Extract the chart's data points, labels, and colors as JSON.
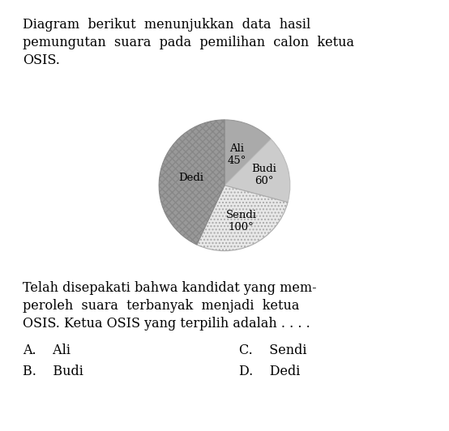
{
  "top_text": "Diagram berikut  menunjukkan  data  hasil\npemungutan  suara  pada  pemilihan  calon  ketua\nOSIS.",
  "bottom_text": "Telah disepakati bahwa kandidat yang mem-\nperoleh  suara  terbanyak  menjadi  ketua\nOSIS. Ketua OSIS yang terpilih adalah . . . .",
  "choice_A": "A.    Ali",
  "choice_B": "B.    Budi",
  "choice_C": "C.    Sendi",
  "choice_D": "D.    Dedi",
  "candidates": [
    "Ali",
    "Budi",
    "Sendi",
    "Dedi"
  ],
  "angles": [
    45,
    60,
    100,
    155
  ],
  "pie_labels": [
    "Ali\n45°",
    "Budi\n60°",
    "Sendi\n100°",
    "Dedi"
  ],
  "colors": [
    "#aaaaaa",
    "#cccccc",
    "#e8e8e8",
    "#999999"
  ],
  "label_radii": [
    0.5,
    0.62,
    0.6,
    0.52
  ],
  "text_fontsize": 11.5,
  "pie_fontsize": 9.5,
  "bg_color": "#ffffff"
}
